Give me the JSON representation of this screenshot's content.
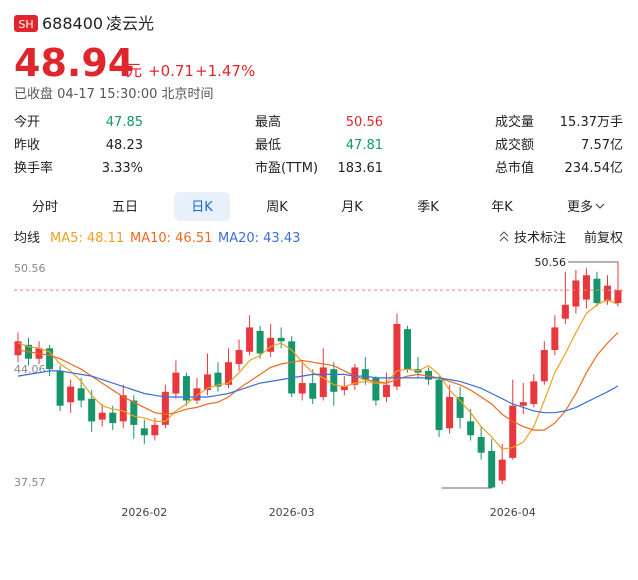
{
  "header": {
    "badge": "SH",
    "code": "688400",
    "name": "凌云光",
    "price": 48.94,
    "unit": "元",
    "change": "+0.71",
    "change_pct": "+1.47%",
    "status": "已收盘 04-17 15:30:00 北京时间"
  },
  "stats": [
    [
      [
        "今开",
        "47.85"
      ],
      [
        "最高",
        "50.56"
      ],
      [
        "成交量",
        "15.37万手"
      ]
    ],
    [
      [
        "昨收",
        "48.23"
      ],
      [
        "最低",
        "47.81"
      ],
      [
        "成交额",
        "7.57亿"
      ]
    ],
    [
      [
        "换手率",
        "3.33%"
      ],
      [
        "市盈(TTM)",
        "183.61"
      ],
      [
        "总市值",
        "234.54亿"
      ]
    ]
  ],
  "tabs": [
    "分时",
    "五日",
    "日K",
    "周K",
    "月K",
    "季K",
    "年K",
    "更多"
  ],
  "active_tab": 2,
  "toolbar": {
    "ma_title": "均线",
    "tech": "技术标注",
    "adjust": "前复权"
  },
  "chart_data": {
    "type": "candlestick",
    "up_color": "#e8383d",
    "down_color": "#17956a",
    "ylim": [
      37.57,
      50.56
    ],
    "yticks": [
      50.56,
      44.06,
      37.57
    ],
    "grid": false,
    "high_marker": 50.56,
    "categories": [
      null,
      null,
      null,
      null,
      null,
      null,
      null,
      null,
      null,
      null,
      null,
      null,
      "2026-02",
      null,
      null,
      null,
      null,
      null,
      null,
      null,
      null,
      null,
      null,
      null,
      null,
      null,
      "2026-03",
      null,
      null,
      null,
      null,
      null,
      null,
      null,
      null,
      null,
      null,
      null,
      null,
      null,
      null,
      null,
      null,
      null,
      null,
      null,
      null,
      "2026-04",
      null,
      null,
      null,
      null,
      null,
      null,
      null,
      null,
      null,
      null
    ],
    "open": [
      45.2,
      45.8,
      45.0,
      45.6,
      44.3,
      42.5,
      43.3,
      42.7,
      41.5,
      41.9,
      41.4,
      42.6,
      41.0,
      40.6,
      41.2,
      43.0,
      44.0,
      42.6,
      43.2,
      44.2,
      43.5,
      44.7,
      45.4,
      46.6,
      45.4,
      46.2,
      46.0,
      43.0,
      43.6,
      42.8,
      44.4,
      43.2,
      43.5,
      44.4,
      43.9,
      42.8,
      43.4,
      46.7,
      44.4,
      44.3,
      43.8,
      41.0,
      42.8,
      41.4,
      40.5,
      39.7,
      38.0,
      39.3,
      42.3,
      42.4,
      43.7,
      45.5,
      47.3,
      48.0,
      48.4,
      49.6,
      48.3,
      48.2
    ],
    "high": [
      46.5,
      46.2,
      46.0,
      45.8,
      44.6,
      43.8,
      43.9,
      43.2,
      42.4,
      42.3,
      43.5,
      42.9,
      41.5,
      41.6,
      43.5,
      44.9,
      44.2,
      43.9,
      45.3,
      44.8,
      45.6,
      46.1,
      47.5,
      46.9,
      47.0,
      46.8,
      46.3,
      44.9,
      44.4,
      45.6,
      44.8,
      44.0,
      44.7,
      45.1,
      44.0,
      44.2,
      47.6,
      46.9,
      45.1,
      44.5,
      44.0,
      43.5,
      43.4,
      42.1,
      41.1,
      40.4,
      40.1,
      43.8,
      43.6,
      44.1,
      46.0,
      47.5,
      50.0,
      50.1,
      50.2,
      50.0,
      49.8,
      50.56
    ],
    "low": [
      44.8,
      44.6,
      44.7,
      44.0,
      42.0,
      41.9,
      42.2,
      40.8,
      41.1,
      40.9,
      41.0,
      40.4,
      40.1,
      40.3,
      41.0,
      42.7,
      42.3,
      42.4,
      42.9,
      43.1,
      43.3,
      44.3,
      45.2,
      45.0,
      45.1,
      45.6,
      42.8,
      42.6,
      42.4,
      42.6,
      42.3,
      42.9,
      43.2,
      43.5,
      42.3,
      42.5,
      43.2,
      44.2,
      43.9,
      43.5,
      40.5,
      40.7,
      41.0,
      40.3,
      39.2,
      37.57,
      37.8,
      39.2,
      41.8,
      42.2,
      43.5,
      45.2,
      47.0,
      47.6,
      47.9,
      48.0,
      48.1,
      48.0
    ],
    "close": [
      46.0,
      45.0,
      45.6,
      44.4,
      42.3,
      43.4,
      42.6,
      41.4,
      41.9,
      41.3,
      42.9,
      41.2,
      40.6,
      41.2,
      43.1,
      44.2,
      42.6,
      43.3,
      44.1,
      43.4,
      44.8,
      45.5,
      46.8,
      45.3,
      46.2,
      46.0,
      43.0,
      43.6,
      42.7,
      44.5,
      43.1,
      43.4,
      44.5,
      43.8,
      42.6,
      43.5,
      47.0,
      44.4,
      44.2,
      43.8,
      40.9,
      42.8,
      41.6,
      40.6,
      39.6,
      37.6,
      39.2,
      42.3,
      42.5,
      43.7,
      45.5,
      46.8,
      48.1,
      49.5,
      49.8,
      48.2,
      49.2,
      48.94
    ],
    "series": [
      {
        "name": "MA5",
        "label": "MA5: 48.11",
        "color": "#f0a020",
        "values": [
          45.9,
          45.7,
          45.6,
          45.4,
          44.7,
          44.3,
          43.7,
          42.9,
          42.3,
          42.1,
          42.0,
          41.7,
          41.6,
          41.4,
          41.4,
          42.0,
          42.4,
          42.9,
          43.3,
          43.5,
          43.6,
          44.2,
          44.9,
          45.2,
          45.7,
          45.9,
          45.5,
          44.8,
          44.2,
          43.9,
          43.5,
          43.4,
          43.6,
          43.7,
          43.6,
          43.6,
          44.3,
          44.4,
          44.3,
          44.6,
          44.1,
          43.2,
          42.6,
          41.9,
          41.1,
          40.5,
          39.8,
          39.9,
          40.2,
          41.1,
          42.6,
          44.2,
          45.3,
          46.5,
          47.6,
          48.1,
          48.4,
          48.11
        ]
      },
      {
        "name": "MA10",
        "label": "MA10: 46.51",
        "color": "#ec6a1c",
        "values": [
          45.5,
          45.4,
          45.3,
          45.2,
          45.0,
          44.7,
          44.4,
          44.0,
          43.6,
          43.2,
          42.8,
          42.5,
          42.2,
          41.9,
          41.8,
          41.9,
          42.1,
          42.2,
          42.4,
          42.5,
          42.8,
          43.3,
          43.7,
          44.1,
          44.5,
          44.7,
          44.8,
          44.9,
          44.8,
          44.7,
          44.6,
          44.3,
          44.0,
          43.8,
          43.7,
          43.6,
          43.8,
          44.0,
          44.1,
          44.0,
          43.9,
          43.7,
          43.5,
          43.2,
          42.8,
          42.4,
          41.8,
          41.4,
          41.1,
          40.9,
          40.9,
          41.3,
          42.0,
          43.0,
          44.2,
          45.2,
          45.9,
          46.51
        ]
      },
      {
        "name": "MA20",
        "label": "MA20: 43.43",
        "color": "#3b6fd6",
        "values": [
          44.0,
          44.1,
          44.2,
          44.3,
          44.3,
          44.2,
          44.1,
          44.0,
          43.8,
          43.6,
          43.4,
          43.2,
          43.0,
          42.9,
          42.8,
          42.8,
          42.8,
          42.8,
          42.8,
          42.9,
          43.0,
          43.2,
          43.4,
          43.6,
          43.7,
          43.8,
          43.9,
          44.0,
          44.1,
          44.1,
          44.1,
          44.1,
          44.0,
          44.0,
          43.9,
          43.9,
          43.9,
          43.9,
          43.9,
          43.9,
          43.9,
          43.8,
          43.7,
          43.5,
          43.3,
          43.0,
          42.7,
          42.4,
          42.2,
          42.0,
          41.9,
          41.9,
          42.0,
          42.2,
          42.5,
          42.8,
          43.1,
          43.43
        ]
      }
    ]
  }
}
